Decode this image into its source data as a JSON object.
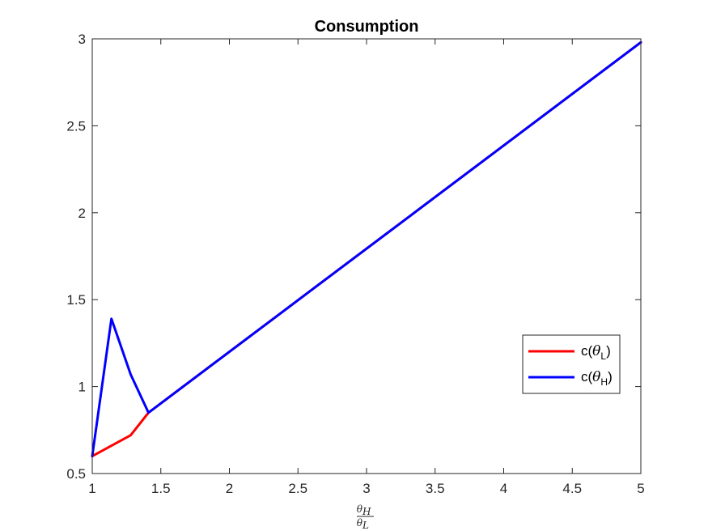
{
  "chart_data": {
    "type": "line",
    "title": "Consumption",
    "xlabel": {
      "numerator": "θ",
      "numerator_sub": "H",
      "denominator": "θ",
      "denominator_sub": "L"
    },
    "ylabel": "",
    "xlim": [
      1,
      5
    ],
    "ylim": [
      0.5,
      3
    ],
    "xticks": [
      1,
      1.5,
      2,
      2.5,
      3,
      3.5,
      4,
      4.5,
      5
    ],
    "xtick_labels": [
      "1",
      "1.5",
      "2",
      "2.5",
      "3",
      "3.5",
      "4",
      "4.5",
      "5"
    ],
    "yticks": [
      0.5,
      1,
      1.5,
      2,
      2.5,
      3
    ],
    "ytick_labels": [
      "0.5",
      "1",
      "1.5",
      "2",
      "2.5",
      "3"
    ],
    "grid": false,
    "legend_position": "right",
    "series": [
      {
        "name": "c(θL)",
        "legend": {
          "prefix": "c(",
          "symbol": "θ",
          "sub": "L",
          "suffix": ")"
        },
        "color": "#ff0000",
        "x": [
          1,
          1.28,
          1.41,
          5
        ],
        "y": [
          0.6,
          0.72,
          0.85,
          2.98
        ]
      },
      {
        "name": "c(θH)",
        "legend": {
          "prefix": "c(",
          "symbol": "θ",
          "sub": "H",
          "suffix": ")"
        },
        "color": "#0000ff",
        "x": [
          1,
          1.14,
          1.28,
          1.41,
          5
        ],
        "y": [
          0.6,
          1.39,
          1.07,
          0.85,
          2.98
        ]
      }
    ]
  }
}
